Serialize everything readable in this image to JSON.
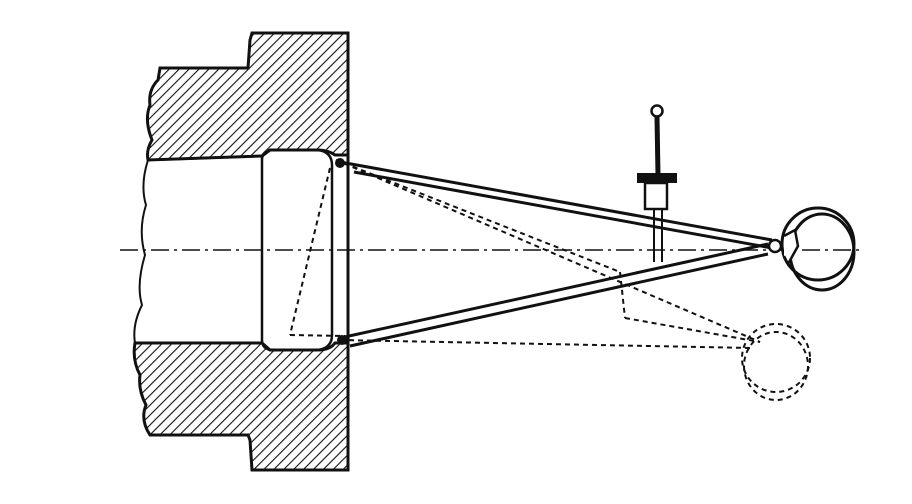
{
  "figure": {
    "subject": "",
    "colors": {
      "ink": "#111111",
      "paper": "#ffffff"
    },
    "parts": {
      "section_hatched": "hatched-section-icon",
      "bore": "bore-icon",
      "wall_plate": "wall-plate-icon",
      "arm_solid": "arm-solid-icon",
      "arm_dashed": "arm-dashed-icon",
      "ring": "ring-icon",
      "indicator": "indicator-icon",
      "centerline": "centerline-icon"
    }
  }
}
